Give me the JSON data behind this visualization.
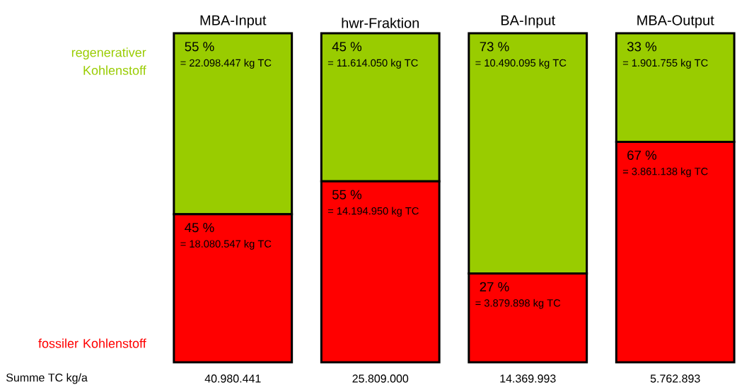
{
  "chart_data": {
    "type": "bar",
    "stacked": true,
    "categories": [
      "MBA-Input",
      "hwr-Fraktion",
      "BA-Input",
      "MBA-Output"
    ],
    "series": [
      {
        "name": "fossiler Kohlenstoff",
        "color": "#ff0000",
        "values": [
          45,
          55,
          27,
          67
        ],
        "value_labels": [
          "45 %",
          "55 %",
          "27 %",
          "67 %"
        ]
      },
      {
        "name": "regenerativer Kohlenstoff",
        "color": "#99cc00",
        "values": [
          55,
          45,
          73,
          33
        ],
        "value_labels": [
          "55 %",
          "45 %",
          "73 %",
          "33 %"
        ]
      }
    ],
    "annotations": [
      "= 22.098.447 kg TC",
      "= 18.080.547 kg TC",
      "= 11.614.050 kg TC",
      "= 14.194.950 kg TC",
      "= 10.490.095 kg TC",
      "= 3.879.898 kg TC",
      "= 1.901.755 kg TC",
      "= 3.861.138 kg TC",
      "Summe TC kg/a",
      "40.980.441",
      "25.809.000",
      "14.369.993",
      "5.762.893"
    ]
  }
}
